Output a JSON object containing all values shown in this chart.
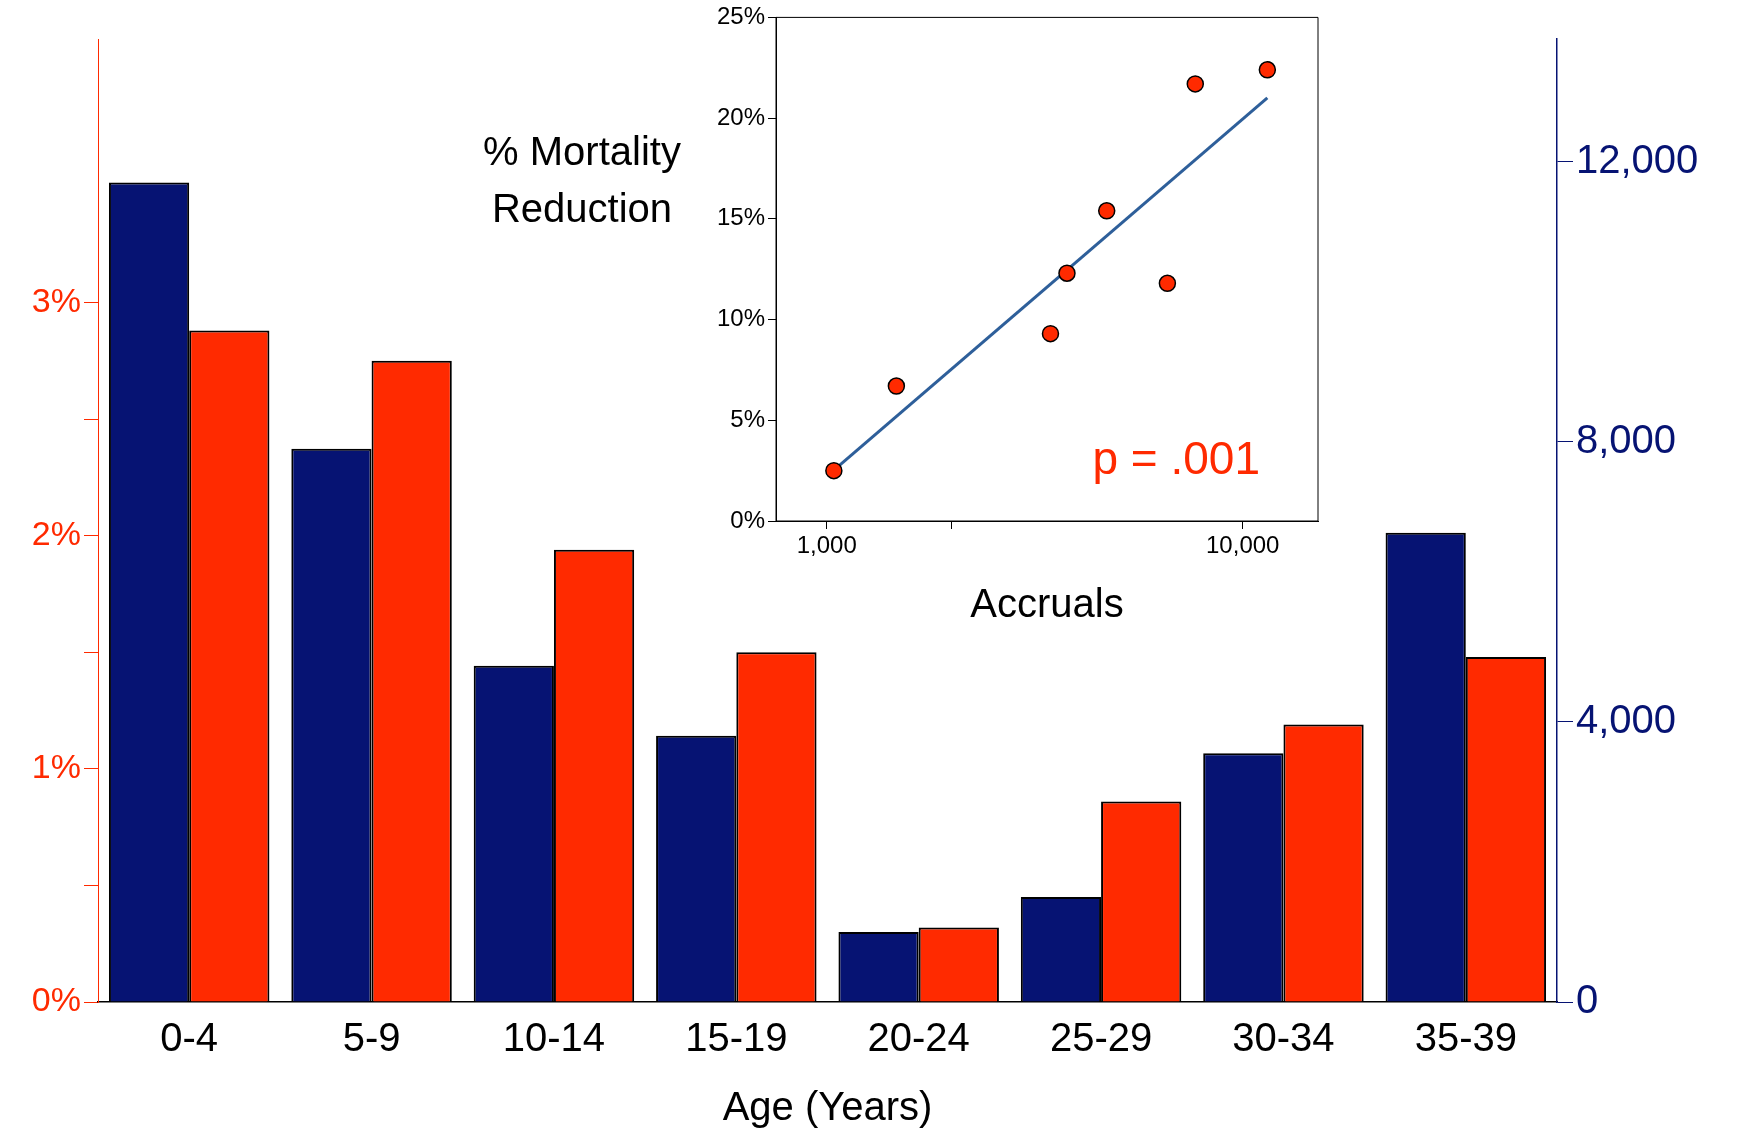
{
  "chart_data": [
    {
      "type": "bar",
      "xlabel": "Age (Years)",
      "categories": [
        "0-4",
        "5-9",
        "10-14",
        "15-19",
        "20-24",
        "25-29",
        "30-34",
        "35-39"
      ],
      "series": [
        {
          "color": "#061373",
          "axis": "y2",
          "values": [
            11700,
            7900,
            4800,
            3800,
            1000,
            1500,
            3550,
            6700
          ]
        },
        {
          "color": "#ff2a00",
          "values": [
            2.88,
            2.75,
            1.94,
            1.5,
            0.32,
            0.86,
            1.19,
            1.48
          ]
        }
      ],
      "ylim": [
        0,
        4.13
      ],
      "yticks": [
        {
          "value": 0,
          "label": "0%"
        },
        {
          "value": 0.5,
          "label": null
        },
        {
          "value": 1,
          "label": "1%"
        },
        {
          "value": 1.5,
          "label": null
        },
        {
          "value": 2,
          "label": "2%"
        },
        {
          "value": 2.5,
          "label": null
        },
        {
          "value": 3,
          "label": "3%"
        }
      ],
      "y2lim": [
        0,
        13750
      ],
      "y2ticks": [
        0,
        {
          "value": 4000,
          "label": "4,000"
        },
        {
          "value": 8000,
          "label": "8,000"
        },
        {
          "value": 12000,
          "label": "12,000"
        }
      ],
      "legend": false,
      "grid": false
    },
    {
      "type": "scatter",
      "xlabel": "Accruals",
      "ylabel": "% Mortality Reduction",
      "log": "x",
      "marker": "circle",
      "series": [
        {
          "color": "#ff2a00",
          "x": [
            1040,
            1470,
            3450,
            3780,
            4710,
            6590,
            7690,
            11460
          ],
          "values": [
            2.5,
            6.7,
            9.3,
            12.3,
            15.4,
            11.8,
            21.7,
            22.4
          ]
        },
        {
          "type": "line",
          "marker": "none",
          "color": "#2e5f9a",
          "x": [
            1064,
            11460
          ],
          "values": [
            2.7,
            21.0
          ]
        }
      ],
      "xlim": [
        755,
        15170
      ],
      "xticks": [
        {
          "value": 1000,
          "label": "1,000"
        },
        {
          "value": 2000,
          "label": null
        },
        {
          "value": 10000,
          "label": "10,000"
        }
      ],
      "ylim": [
        0,
        25
      ],
      "yticks": [
        {
          "value": 0,
          "label": "0%"
        },
        {
          "value": 5,
          "label": "5%"
        },
        {
          "value": 10,
          "label": "10%"
        },
        {
          "value": 15,
          "label": "15%"
        },
        {
          "value": 20,
          "label": "20%"
        },
        {
          "value": 25,
          "label": "25%"
        }
      ],
      "annotations": [
        "p = .001"
      ],
      "legend": false,
      "grid": false
    }
  ]
}
